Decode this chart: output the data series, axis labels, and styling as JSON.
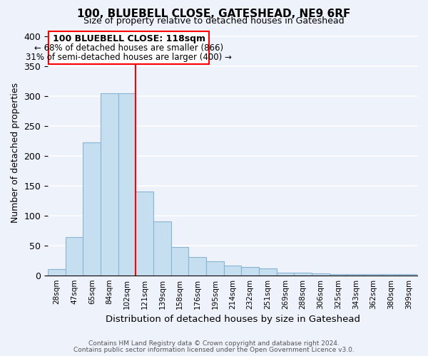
{
  "title": "100, BLUEBELL CLOSE, GATESHEAD, NE9 6RF",
  "subtitle": "Size of property relative to detached houses in Gateshead",
  "xlabel": "Distribution of detached houses by size in Gateshead",
  "ylabel": "Number of detached properties",
  "bar_labels": [
    "28sqm",
    "47sqm",
    "65sqm",
    "84sqm",
    "102sqm",
    "121sqm",
    "139sqm",
    "158sqm",
    "176sqm",
    "195sqm",
    "214sqm",
    "232sqm",
    "251sqm",
    "269sqm",
    "288sqm",
    "306sqm",
    "325sqm",
    "343sqm",
    "362sqm",
    "380sqm",
    "399sqm"
  ],
  "bar_heights": [
    10,
    64,
    222,
    305,
    304,
    140,
    90,
    47,
    31,
    23,
    16,
    14,
    12,
    4,
    4,
    3,
    2,
    2,
    2,
    2,
    2
  ],
  "bar_color": "#c6dff0",
  "bar_edge_color": "#8ab4d4",
  "vline_x_idx": 5,
  "vline_color": "red",
  "annotation_title": "100 BLUEBELL CLOSE: 118sqm",
  "annotation_line1": "← 68% of detached houses are smaller (866)",
  "annotation_line2": "31% of semi-detached houses are larger (400) →",
  "annotation_box_color": "white",
  "annotation_box_edge": "red",
  "ylim": [
    0,
    410
  ],
  "yticks": [
    0,
    50,
    100,
    150,
    200,
    250,
    300,
    350,
    400
  ],
  "footer_line1": "Contains HM Land Registry data © Crown copyright and database right 2024.",
  "footer_line2": "Contains public sector information licensed under the Open Government Licence v3.0.",
  "bg_color": "#eef2fb",
  "plot_bg_color": "#eef2fb",
  "grid_color": "white"
}
